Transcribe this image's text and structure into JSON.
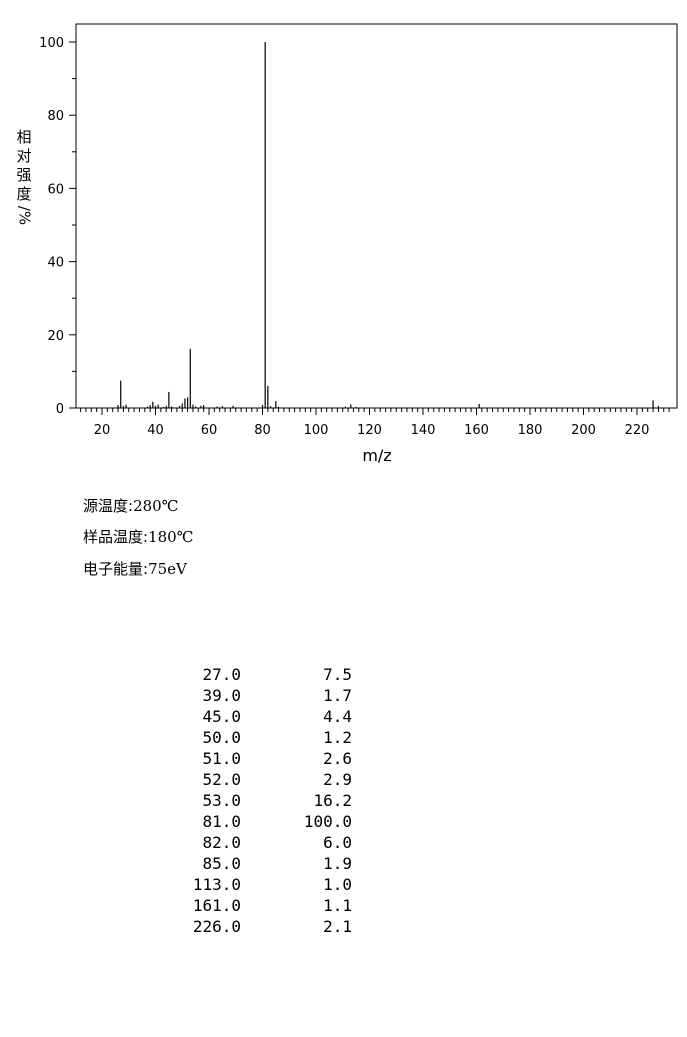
{
  "chart_data": {
    "type": "bar",
    "xlabel": "m/z",
    "ylabel": "相对强度/%",
    "xlim": [
      10,
      232
    ],
    "ylim": [
      0,
      105
    ],
    "xticks": [
      20,
      40,
      60,
      80,
      100,
      120,
      140,
      160,
      180,
      200,
      220
    ],
    "yticks": [
      0,
      20,
      40,
      60,
      80,
      100
    ],
    "grid": false,
    "peaks": [
      {
        "mz": 26,
        "abundance": 0.8
      },
      {
        "mz": 27,
        "abundance": 7.5
      },
      {
        "mz": 28,
        "abundance": 0.6
      },
      {
        "mz": 29,
        "abundance": 0.9
      },
      {
        "mz": 37,
        "abundance": 0.4
      },
      {
        "mz": 38,
        "abundance": 0.8
      },
      {
        "mz": 39,
        "abundance": 1.7
      },
      {
        "mz": 40,
        "abundance": 0.6
      },
      {
        "mz": 41,
        "abundance": 0.9
      },
      {
        "mz": 43,
        "abundance": 0.3
      },
      {
        "mz": 44,
        "abundance": 0.6
      },
      {
        "mz": 45,
        "abundance": 4.4
      },
      {
        "mz": 46,
        "abundance": 0.4
      },
      {
        "mz": 49,
        "abundance": 0.6
      },
      {
        "mz": 50,
        "abundance": 1.2
      },
      {
        "mz": 51,
        "abundance": 2.6
      },
      {
        "mz": 52,
        "abundance": 2.9
      },
      {
        "mz": 53,
        "abundance": 16.2
      },
      {
        "mz": 54,
        "abundance": 0.9
      },
      {
        "mz": 55,
        "abundance": 0.4
      },
      {
        "mz": 57,
        "abundance": 0.6
      },
      {
        "mz": 58,
        "abundance": 0.8
      },
      {
        "mz": 63,
        "abundance": 0.4
      },
      {
        "mz": 65,
        "abundance": 0.5
      },
      {
        "mz": 69,
        "abundance": 0.6
      },
      {
        "mz": 80,
        "abundance": 0.8
      },
      {
        "mz": 81,
        "abundance": 100.0
      },
      {
        "mz": 82,
        "abundance": 6.0
      },
      {
        "mz": 83,
        "abundance": 0.5
      },
      {
        "mz": 85,
        "abundance": 1.9
      },
      {
        "mz": 86,
        "abundance": 0.3
      },
      {
        "mz": 111,
        "abundance": 0.4
      },
      {
        "mz": 113,
        "abundance": 1.0
      },
      {
        "mz": 115,
        "abundance": 0.3
      },
      {
        "mz": 161,
        "abundance": 1.1
      },
      {
        "mz": 226,
        "abundance": 2.1
      },
      {
        "mz": 228,
        "abundance": 0.6
      }
    ]
  },
  "ylabel_chars": [
    "相",
    "对",
    "强",
    "度"
  ],
  "ylabel_unit": "/%",
  "conditions": [
    {
      "label": "源温度:",
      "value": "280℃"
    },
    {
      "label": "样品温度:",
      "value": "180℃"
    },
    {
      "label": "电子能量:",
      "value": "75eV"
    }
  ],
  "peak_table": [
    {
      "mz": "27.0",
      "abundance": "7.5"
    },
    {
      "mz": "39.0",
      "abundance": "1.7"
    },
    {
      "mz": "45.0",
      "abundance": "4.4"
    },
    {
      "mz": "50.0",
      "abundance": "1.2"
    },
    {
      "mz": "51.0",
      "abundance": "2.6"
    },
    {
      "mz": "52.0",
      "abundance": "2.9"
    },
    {
      "mz": "53.0",
      "abundance": "16.2"
    },
    {
      "mz": "81.0",
      "abundance": "100.0"
    },
    {
      "mz": "82.0",
      "abundance": "6.0"
    },
    {
      "mz": "85.0",
      "abundance": "1.9"
    },
    {
      "mz": "113.0",
      "abundance": "1.0"
    },
    {
      "mz": "161.0",
      "abundance": "1.1"
    },
    {
      "mz": "226.0",
      "abundance": "2.1"
    }
  ]
}
